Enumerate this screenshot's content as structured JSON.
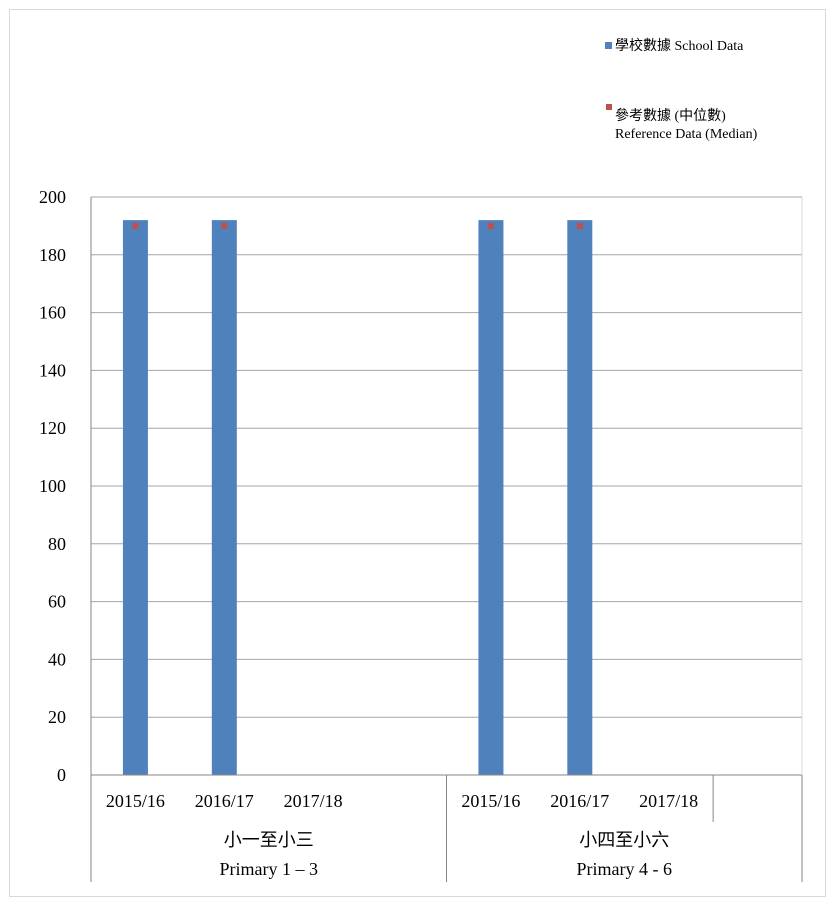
{
  "chart_data": {
    "type": "bar",
    "groups": [
      {
        "label_zh": "小一至小三",
        "label_en": "Primary 1 – 3",
        "categories": [
          "2015/16",
          "2016/17",
          "2017/18"
        ]
      },
      {
        "label_zh": "小四至小六",
        "label_en": "Primary 4 - 6",
        "categories": [
          "2015/16",
          "2016/17",
          "2017/18"
        ]
      }
    ],
    "series": [
      {
        "name": "學校數據 School Data",
        "style": "bar",
        "color": "#4f81bd",
        "values": [
          192,
          192,
          null,
          192,
          192,
          null
        ]
      },
      {
        "name_line1": "參考數據 (中位數)",
        "name_line2": "Reference Data (Median)",
        "style": "marker",
        "color": "#c0504d",
        "values": [
          190,
          190,
          null,
          190,
          190,
          null
        ]
      }
    ],
    "ylim": [
      0,
      200
    ],
    "yticks": [
      0,
      20,
      40,
      60,
      80,
      100,
      120,
      140,
      160,
      180,
      200
    ],
    "grid": true,
    "legend_position": "top-right"
  }
}
